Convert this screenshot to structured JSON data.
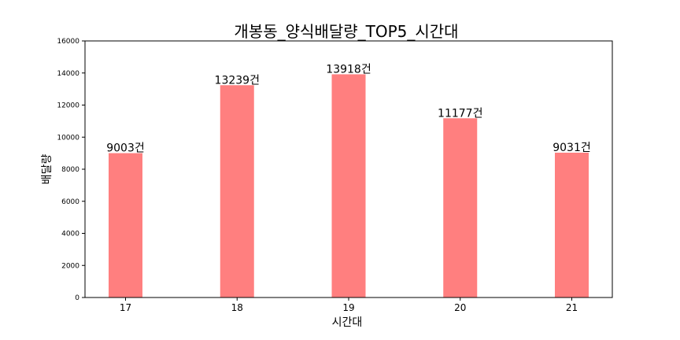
{
  "chart_data": {
    "type": "bar",
    "title": "개봉동_양식배달량_TOP5_시간대",
    "xlabel": "시간대",
    "ylabel": "배달량",
    "categories": [
      "17",
      "18",
      "19",
      "20",
      "21"
    ],
    "values": [
      9003,
      13239,
      13918,
      11177,
      9031
    ],
    "data_labels": [
      "9003건",
      "13239건",
      "13918건",
      "11177건",
      "9031건"
    ],
    "ylim": [
      0,
      16000
    ],
    "yticks": [
      "0",
      "2000",
      "4000",
      "6000",
      "8000",
      "10000",
      "12000",
      "14000",
      "16000"
    ],
    "bar_color": "#ff7f7f",
    "grid": false
  }
}
